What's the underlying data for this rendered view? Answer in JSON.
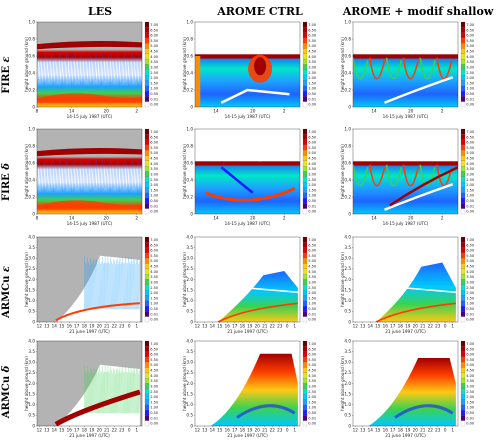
{
  "column_titles": [
    "LES",
    "AROME CTRL",
    "AROME + modif shallow"
  ],
  "row_titles": [
    {
      "case": "FIRE",
      "symbol": "ε"
    },
    {
      "case": "FIRE",
      "symbol": "δ"
    },
    {
      "case": "ARMCu",
      "symbol": "ε"
    },
    {
      "case": "ARMCu",
      "symbol": "δ"
    }
  ],
  "colors": {
    "background_missing": "#b3b3b3",
    "scale": [
      "#ffffff",
      "#4b0082",
      "#1c1cff",
      "#1e64ff",
      "#1ea0ff",
      "#00c8ff",
      "#00e6c8",
      "#3cd250",
      "#a0e632",
      "#e6e61e",
      "#ffc814",
      "#ff8c00",
      "#ff3c00",
      "#dc0000",
      "#a00000",
      "#640000"
    ]
  },
  "chart_data": {
    "type": "heatmap",
    "colorbar": {
      "ticks": [
        "7.00",
        "6.50",
        "6.00",
        "5.50",
        "5.00",
        "4.50",
        "4.00",
        "3.50",
        "3.00",
        "2.50",
        "2.00",
        "1.50",
        "1.00",
        "0.50",
        "0.01",
        "0.00"
      ]
    },
    "fire": {
      "ylabel": "height above ground (km)",
      "xlabel": "14-15 july 1987 (UTC)",
      "ylim": [
        0,
        1.0
      ],
      "yticks": [
        "0",
        "0.2",
        "0.4",
        "0.6",
        "0.8",
        "1.0"
      ],
      "xticks_les": [
        "8",
        "14",
        "20",
        "2"
      ],
      "xticks_arome": [
        "14",
        "20",
        "2"
      ]
    },
    "armcu": {
      "ylabel": "height above ground (km)",
      "xlabel": "21 june 1997 (UTC)",
      "ylim": [
        0,
        4.0
      ],
      "yticks": [
        "0",
        "0.5",
        "1.0",
        "1.5",
        "2.0",
        "2.5",
        "3.0",
        "3.5",
        "4.0"
      ],
      "xticks": [
        "12",
        "13",
        "14",
        "15",
        "16",
        "17",
        "18",
        "19",
        "20",
        "21",
        "22",
        "23",
        "0",
        "1"
      ]
    }
  }
}
